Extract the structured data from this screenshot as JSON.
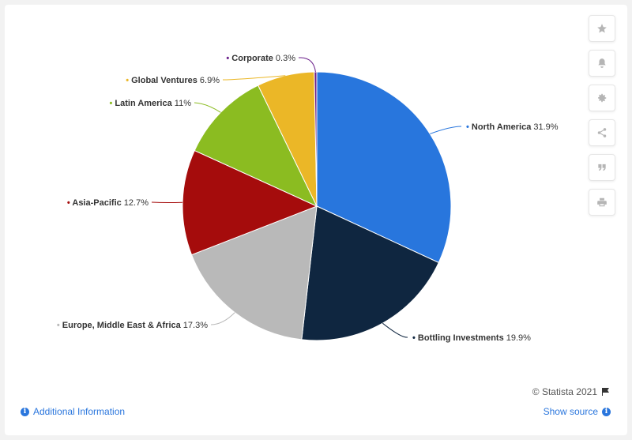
{
  "chart_data": {
    "type": "pie",
    "title": "",
    "slices": [
      {
        "label": "North America",
        "value": 31.9,
        "display": "31.9%",
        "color": "#2876dd"
      },
      {
        "label": "Bottling Investments",
        "value": 19.9,
        "display": "19.9%",
        "color": "#0f2640"
      },
      {
        "label": "Europe, Middle East & Africa",
        "value": 17.3,
        "display": "17.3%",
        "color": "#b9b9b9"
      },
      {
        "label": "Asia-Pacific",
        "value": 12.7,
        "display": "12.7%",
        "color": "#a50c0c"
      },
      {
        "label": "Latin America",
        "value": 11,
        "display": "11%",
        "color": "#8bbc21"
      },
      {
        "label": "Global Ventures",
        "value": 6.9,
        "display": "6.9%",
        "color": "#ebb727"
      },
      {
        "label": "Corporate",
        "value": 0.3,
        "display": "0.3%",
        "color": "#6a1f8a"
      }
    ]
  },
  "toolbar": {
    "icons": [
      "star-icon",
      "bell-icon",
      "gear-icon",
      "share-icon",
      "quote-icon",
      "print-icon"
    ]
  },
  "footer": {
    "credit": "© Statista 2021",
    "additional_info": "Additional Information",
    "show_source": "Show source"
  }
}
